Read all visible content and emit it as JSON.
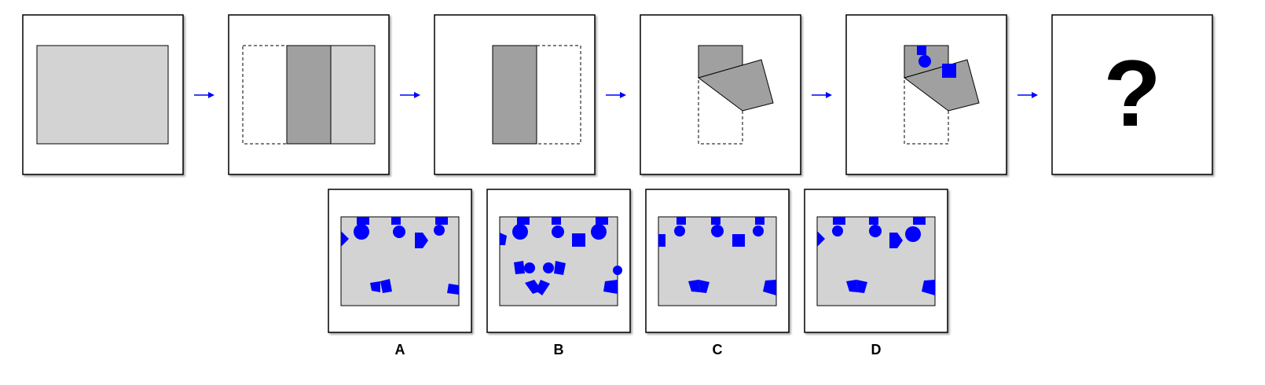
{
  "sequence": {
    "question_mark": "?",
    "colors": {
      "paper": "#d3d3d3",
      "folded": "#a0a0a0",
      "punch": "#0000ff",
      "arrow": "#0000ff"
    }
  },
  "options": [
    {
      "label": "A"
    },
    {
      "label": "B"
    },
    {
      "label": "C"
    },
    {
      "label": "D"
    }
  ]
}
